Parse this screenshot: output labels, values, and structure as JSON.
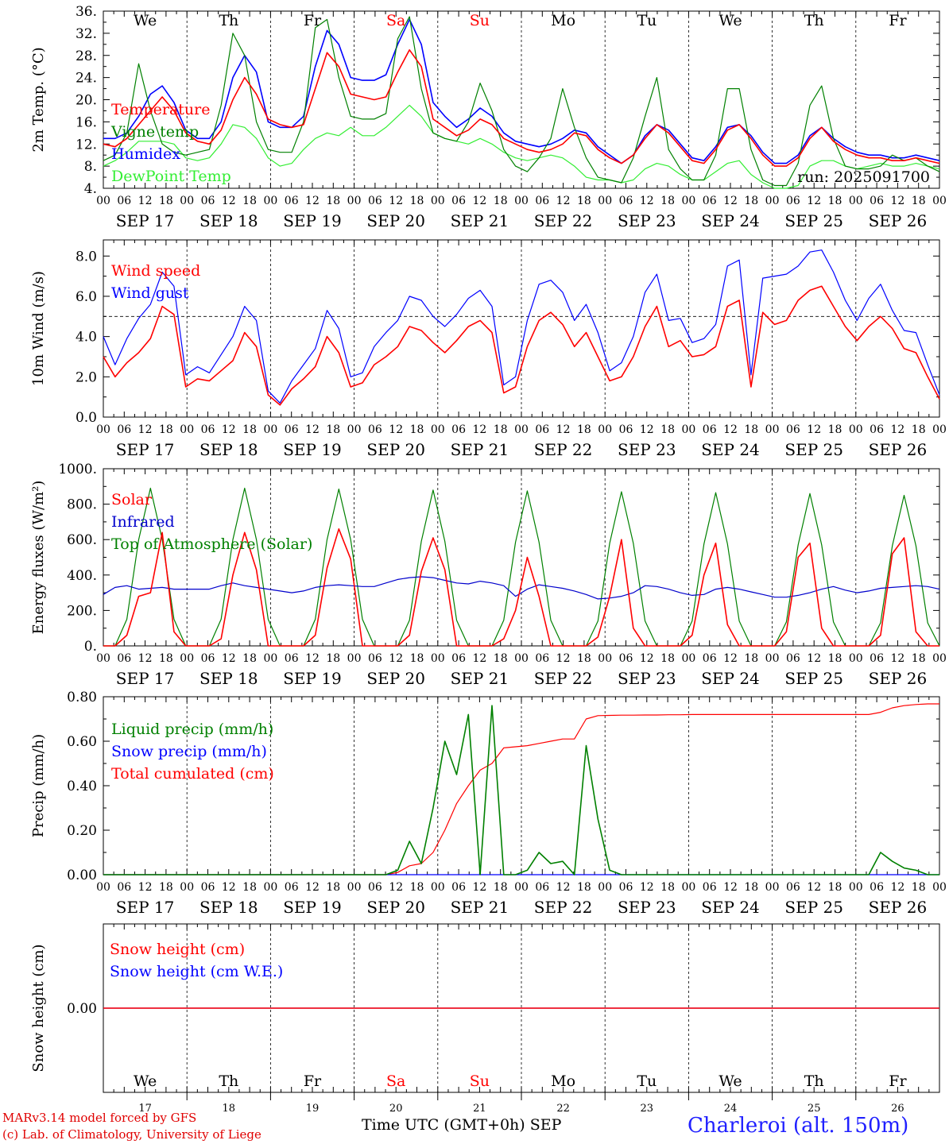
{
  "figure": {
    "station": "Charleroi (alt. 150m)",
    "run_label": "run: 2025091700",
    "credit_line1": "MARv3.14 model forced by GFS",
    "credit_line2": "(c) Lab. of Climatology, University of Liege",
    "xlabel": "Time UTC (GMT+0h)",
    "month_label": "SEP",
    "hour_ticks": [
      "00",
      "06",
      "12",
      "18"
    ],
    "date_labels": [
      "SEP 17",
      "SEP 18",
      "SEP 19",
      "SEP 20",
      "SEP 21",
      "SEP 22",
      "SEP 23",
      "SEP 24",
      "SEP 25",
      "SEP 26"
    ],
    "day_numbers": [
      "17",
      "18",
      "19",
      "20",
      "21",
      "22",
      "23",
      "24",
      "25",
      "26"
    ],
    "weekdays": [
      "We",
      "Th",
      "Fr",
      "Sa",
      "Su",
      "Mo",
      "Tu",
      "We",
      "Th",
      "Fr"
    ],
    "weekday_colors": [
      "#000000",
      "#000000",
      "#000000",
      "#ff0000",
      "#ff0000",
      "#000000",
      "#000000",
      "#000000",
      "#000000",
      "#000000"
    ]
  },
  "chart_data": [
    {
      "type": "line",
      "title": "",
      "ylabel": "2m Temp. (°C)",
      "xlabel": "",
      "ylim": [
        4,
        36
      ],
      "yticks": [
        4,
        8,
        12,
        16,
        20,
        24,
        28,
        32,
        36
      ],
      "ytick_labels": [
        "4.",
        "8.",
        "12.",
        "16.",
        "20.",
        "24.",
        "28.",
        "32.",
        "36."
      ],
      "x_unit": "hours since SEP 17 00 UTC (3-hour steps)",
      "series": [
        {
          "name": "Temperature",
          "color": "#ff0000",
          "values": [
            12,
            11.5,
            13,
            15.5,
            18,
            20.5,
            18,
            14,
            12.5,
            12,
            14.5,
            20,
            24,
            21,
            16.5,
            15.5,
            15,
            15.5,
            22,
            28.5,
            26,
            21,
            20.5,
            20,
            20.5,
            25,
            29,
            26,
            16.5,
            15,
            13.5,
            14.5,
            16.5,
            15.5,
            13,
            12,
            11,
            10.5,
            11,
            12,
            14,
            13.5,
            11,
            9.5,
            8.5,
            10,
            13,
            15.5,
            14,
            11.5,
            9,
            8.5,
            11,
            14.5,
            15.5,
            13,
            10,
            8,
            8,
            9.5,
            13,
            15,
            12.5,
            11,
            10,
            9.5,
            9.5,
            9,
            9,
            9.5,
            9,
            8.5
          ]
        },
        {
          "name": "Vigne temp",
          "color": "#008000",
          "values": [
            9,
            10,
            14,
            26.5,
            18,
            12,
            10.5,
            10,
            10.5,
            11,
            19,
            32,
            28,
            16,
            11,
            10.5,
            10.5,
            16,
            33,
            34.5,
            24,
            17,
            16.5,
            16.5,
            17.5,
            31,
            35,
            22,
            14,
            13,
            12.5,
            16,
            23,
            18,
            11,
            8,
            7,
            9.5,
            13,
            22,
            15,
            9.5,
            6,
            5.5,
            5,
            9.5,
            17,
            24,
            11,
            7.5,
            5.5,
            5.5,
            10,
            22,
            22,
            11,
            5.5,
            4.5,
            4.5,
            8.5,
            19,
            22.5,
            13,
            8,
            7.5,
            7.5,
            8,
            10,
            9,
            9.5,
            8,
            7
          ]
        },
        {
          "name": "Humidex",
          "color": "#0000ff",
          "values": [
            13,
            13,
            14,
            17,
            21,
            22.5,
            19.5,
            14.5,
            13,
            13,
            16,
            24,
            28,
            25,
            16,
            15,
            15,
            17,
            26,
            32.5,
            30,
            24,
            23.5,
            23.5,
            24.5,
            30,
            34.5,
            30,
            19.5,
            17,
            15,
            16.5,
            18.5,
            17,
            14,
            12.5,
            12,
            11.5,
            12,
            13,
            14.5,
            14,
            11.5,
            10,
            8.5,
            10,
            13.5,
            15.5,
            14.5,
            12,
            9.5,
            9,
            11.5,
            15,
            15.5,
            13.5,
            10.5,
            8.5,
            8.5,
            10,
            13.5,
            15,
            13,
            11.5,
            10.5,
            10,
            10,
            9.5,
            9.5,
            10,
            9.5,
            9
          ]
        },
        {
          "name": "DewPoint Temp",
          "color": "#33ee33",
          "values": [
            8,
            9,
            10.5,
            12.5,
            12.5,
            12.5,
            12,
            9.5,
            9,
            9.5,
            12,
            15.5,
            15,
            13,
            9.5,
            8,
            8.5,
            11,
            13,
            14,
            13.5,
            15,
            13.5,
            13.5,
            15,
            17,
            19,
            17,
            14,
            13,
            12.5,
            12,
            13,
            12,
            10.5,
            9.5,
            9,
            9.5,
            10,
            9.5,
            8,
            6,
            5.5,
            5.5,
            5,
            5.5,
            7.5,
            8.5,
            8,
            6.5,
            5.5,
            5.5,
            7,
            8.5,
            9,
            6.5,
            5,
            4,
            3.5,
            4.5,
            8,
            9,
            9,
            8,
            7.5,
            8,
            8.5,
            8,
            8,
            8.5,
            8,
            7.5
          ]
        }
      ],
      "legend": [
        "Temperature",
        "Vigne temp",
        "Humidex",
        "DewPoint Temp"
      ],
      "legend_position": "left"
    },
    {
      "type": "line",
      "title": "",
      "ylabel": "10m Wind (m/s)",
      "xlabel": "",
      "ylim": [
        0,
        8.8
      ],
      "yticks": [
        0,
        2,
        4,
        6,
        8
      ],
      "ytick_labels": [
        "0.0",
        "2.0",
        "4.0",
        "6.0",
        "8.0"
      ],
      "reference_line": 5.0,
      "x_unit": "hours since SEP 17 00 UTC (3-hour steps)",
      "series": [
        {
          "name": "Wind speed",
          "color": "#ff0000",
          "values": [
            3,
            2,
            2.7,
            3.2,
            3.9,
            5.5,
            5.1,
            1.5,
            1.9,
            1.8,
            2.3,
            2.8,
            4.2,
            3.5,
            1.1,
            0.6,
            1.4,
            1.9,
            2.5,
            4,
            3.2,
            1.5,
            1.7,
            2.6,
            3,
            3.5,
            4.5,
            4.3,
            3.7,
            3.2,
            3.8,
            4.5,
            4.8,
            4.2,
            1.2,
            1.5,
            3.5,
            4.8,
            5.2,
            4.6,
            3.5,
            4.2,
            3,
            1.8,
            2,
            3,
            4.5,
            5.5,
            3.5,
            3.8,
            3,
            3.1,
            3.5,
            5.5,
            5.8,
            1.5,
            5.2,
            4.6,
            4.8,
            5.8,
            6.3,
            6.5,
            5.5,
            4.5,
            3.8,
            4.5,
            5,
            4.4,
            3.4,
            3.2,
            2,
            0.9
          ]
        },
        {
          "name": "Wind gust",
          "color": "#0000ff",
          "values": [
            4,
            2.6,
            3.9,
            4.9,
            5.6,
            7.2,
            6.5,
            2.1,
            2.5,
            2.2,
            3.1,
            4,
            5.5,
            4.8,
            1.3,
            0.7,
            1.8,
            2.6,
            3.4,
            5.3,
            4.4,
            2,
            2.2,
            3.5,
            4.2,
            4.8,
            6,
            5.8,
            5,
            4.5,
            5.1,
            5.9,
            6.3,
            5.5,
            1.6,
            2,
            4.8,
            6.6,
            6.8,
            6.2,
            4.8,
            5.6,
            4.2,
            2.3,
            2.7,
            4,
            6.2,
            7.1,
            4.8,
            4.9,
            3.7,
            3.9,
            4.6,
            7.5,
            7.8,
            2.1,
            6.9,
            7,
            7.1,
            7.5,
            8.2,
            8.3,
            7.2,
            5.8,
            4.8,
            5.9,
            6.6,
            5.3,
            4.3,
            4.2,
            2.6,
            1.1
          ]
        }
      ],
      "legend": [
        "Wind speed",
        "Wind gust"
      ],
      "legend_position": "left"
    },
    {
      "type": "line",
      "title": "",
      "ylabel": "Energy fluxes (W/m²)",
      "xlabel": "",
      "ylim": [
        0,
        1000
      ],
      "yticks": [
        0,
        200,
        400,
        600,
        800,
        1000
      ],
      "ytick_labels": [
        "0.",
        "200.",
        "400.",
        "600.",
        "800.",
        "1000."
      ],
      "x_unit": "hours since SEP 17 00 UTC (3-hour steps)",
      "series": [
        {
          "name": "Solar",
          "color": "#ff0000",
          "values": [
            0,
            0,
            60,
            280,
            300,
            640,
            80,
            0,
            0,
            0,
            40,
            400,
            640,
            430,
            0,
            0,
            0,
            0,
            60,
            440,
            660,
            490,
            0,
            0,
            0,
            0,
            60,
            420,
            610,
            430,
            0,
            0,
            0,
            0,
            40,
            200,
            500,
            280,
            0,
            0,
            0,
            0,
            50,
            280,
            600,
            100,
            0,
            0,
            0,
            0,
            60,
            400,
            580,
            120,
            0,
            0,
            0,
            0,
            80,
            500,
            580,
            100,
            0,
            0,
            0,
            0,
            60,
            520,
            610,
            80,
            0,
            0
          ]
        },
        {
          "name": "Infrared",
          "color": "#0000cc",
          "values": [
            290,
            330,
            340,
            320,
            325,
            330,
            320,
            320,
            320,
            320,
            340,
            355,
            340,
            330,
            320,
            310,
            300,
            310,
            330,
            340,
            345,
            340,
            335,
            335,
            355,
            375,
            385,
            390,
            385,
            370,
            355,
            350,
            365,
            355,
            340,
            280,
            320,
            345,
            335,
            325,
            310,
            290,
            265,
            270,
            280,
            300,
            340,
            335,
            320,
            300,
            285,
            290,
            320,
            330,
            320,
            305,
            290,
            275,
            275,
            285,
            300,
            320,
            335,
            315,
            300,
            310,
            325,
            330,
            335,
            340,
            335,
            320
          ]
        },
        {
          "name": "Top of Atmosphere (Solar)",
          "color": "#008000",
          "values": [
            0,
            0,
            150,
            600,
            890,
            600,
            150,
            0,
            0,
            0,
            150,
            600,
            890,
            600,
            150,
            0,
            0,
            0,
            150,
            600,
            885,
            600,
            150,
            0,
            0,
            0,
            145,
            590,
            880,
            590,
            145,
            0,
            0,
            0,
            145,
            585,
            875,
            585,
            145,
            0,
            0,
            0,
            140,
            580,
            870,
            580,
            140,
            0,
            0,
            0,
            140,
            575,
            865,
            575,
            140,
            0,
            0,
            0,
            135,
            570,
            860,
            570,
            135,
            0,
            0,
            0,
            130,
            565,
            850,
            565,
            130,
            0
          ]
        }
      ],
      "legend": [
        "Solar",
        "Infrared",
        "Top of Atmosphere (Solar)"
      ],
      "legend_position": "left"
    },
    {
      "type": "line",
      "title": "",
      "ylabel": "Precip (mm/h)",
      "xlabel": "",
      "ylim": [
        0,
        0.8
      ],
      "yticks": [
        0,
        0.2,
        0.4,
        0.6,
        0.8
      ],
      "ytick_labels": [
        "0.00",
        "0.20",
        "0.40",
        "0.60",
        "0.80"
      ],
      "x_unit": "hours since SEP 17 00 UTC (3-hour steps)",
      "series": [
        {
          "name": "Liquid precip (mm/h)",
          "color": "#008000",
          "values": [
            0,
            0,
            0,
            0,
            0,
            0,
            0,
            0,
            0,
            0,
            0,
            0,
            0,
            0,
            0,
            0,
            0,
            0,
            0,
            0,
            0,
            0,
            0,
            0,
            0,
            0.02,
            0.15,
            0.05,
            0.3,
            0.6,
            0.45,
            0.72,
            0,
            0.76,
            0,
            0,
            0.02,
            0.1,
            0.05,
            0.06,
            0,
            0.58,
            0.25,
            0.02,
            0,
            0,
            0,
            0,
            0,
            0,
            0,
            0,
            0,
            0,
            0,
            0,
            0,
            0,
            0,
            0,
            0,
            0,
            0,
            0,
            0,
            0,
            0.1,
            0.06,
            0.03,
            0.02,
            0,
            0
          ]
        },
        {
          "name": "Snow precip (mm/h)",
          "color": "#0000ff",
          "values": [
            0,
            0,
            0,
            0,
            0,
            0,
            0,
            0,
            0,
            0,
            0,
            0,
            0,
            0,
            0,
            0,
            0,
            0,
            0,
            0,
            0,
            0,
            0,
            0,
            0,
            0,
            0,
            0,
            0,
            0,
            0,
            0,
            0,
            0,
            0,
            0,
            0,
            0,
            0,
            0,
            0,
            0,
            0,
            0,
            0,
            0,
            0,
            0,
            0,
            0,
            0,
            0,
            0,
            0,
            0,
            0,
            0,
            0,
            0,
            0,
            0,
            0,
            0,
            0,
            0,
            0,
            0,
            0,
            0,
            0,
            0,
            0
          ]
        },
        {
          "name": "Total cumulated (cm)",
          "color": "#ff0000",
          "values": [
            0,
            0,
            0,
            0,
            0,
            0,
            0,
            0,
            0,
            0,
            0,
            0,
            0,
            0,
            0,
            0,
            0,
            0,
            0,
            0,
            0,
            0,
            0,
            0,
            0,
            0.01,
            0.04,
            0.05,
            0.1,
            0.2,
            0.32,
            0.4,
            0.47,
            0.5,
            0.57,
            0.575,
            0.58,
            0.59,
            0.6,
            0.61,
            0.61,
            0.7,
            0.715,
            0.716,
            0.717,
            0.717,
            0.718,
            0.718,
            0.719,
            0.719,
            0.72,
            0.72,
            0.72,
            0.72,
            0.72,
            0.72,
            0.72,
            0.72,
            0.72,
            0.72,
            0.72,
            0.72,
            0.72,
            0.72,
            0.72,
            0.72,
            0.73,
            0.75,
            0.76,
            0.765,
            0.768,
            0.768
          ]
        }
      ],
      "legend": [
        "Liquid precip (mm/h)",
        "Snow precip (mm/h)",
        "Total cumulated (cm)"
      ],
      "legend_position": "left"
    },
    {
      "type": "line",
      "title": "",
      "ylabel": "Snow height (cm)",
      "xlabel": "Time UTC (GMT+0h) SEP",
      "ylim": [
        -1,
        1
      ],
      "yticks": [
        0
      ],
      "ytick_labels": [
        "0.00"
      ],
      "x_unit": "hours since SEP 17 00 UTC",
      "series": [
        {
          "name": "Snow height (cm)",
          "color": "#ff0000",
          "values": [
            0,
            0
          ]
        },
        {
          "name": "Snow height (cm W.E.)",
          "color": "#0000ff",
          "values": [
            0,
            0
          ]
        }
      ],
      "legend": [
        "Snow height (cm)",
        "Snow height (cm W.E.)"
      ],
      "legend_position": "left"
    }
  ]
}
